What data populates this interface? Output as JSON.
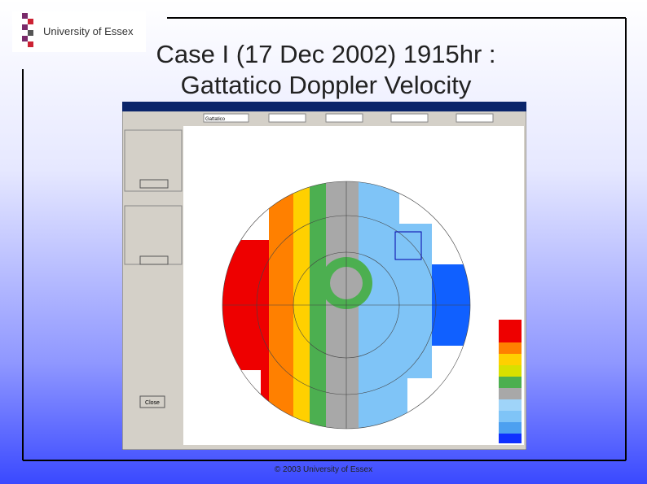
{
  "header": {
    "logo_text": "University of Essex",
    "title_line1": "Case I (17 Dec 2002) 1915hr :",
    "title_line2": "Gattatico Doppler Velocity"
  },
  "screenshot": {
    "radar_name": "Gattatico",
    "close_button": "Close"
  },
  "footer": "© 2003 University of Essex"
}
